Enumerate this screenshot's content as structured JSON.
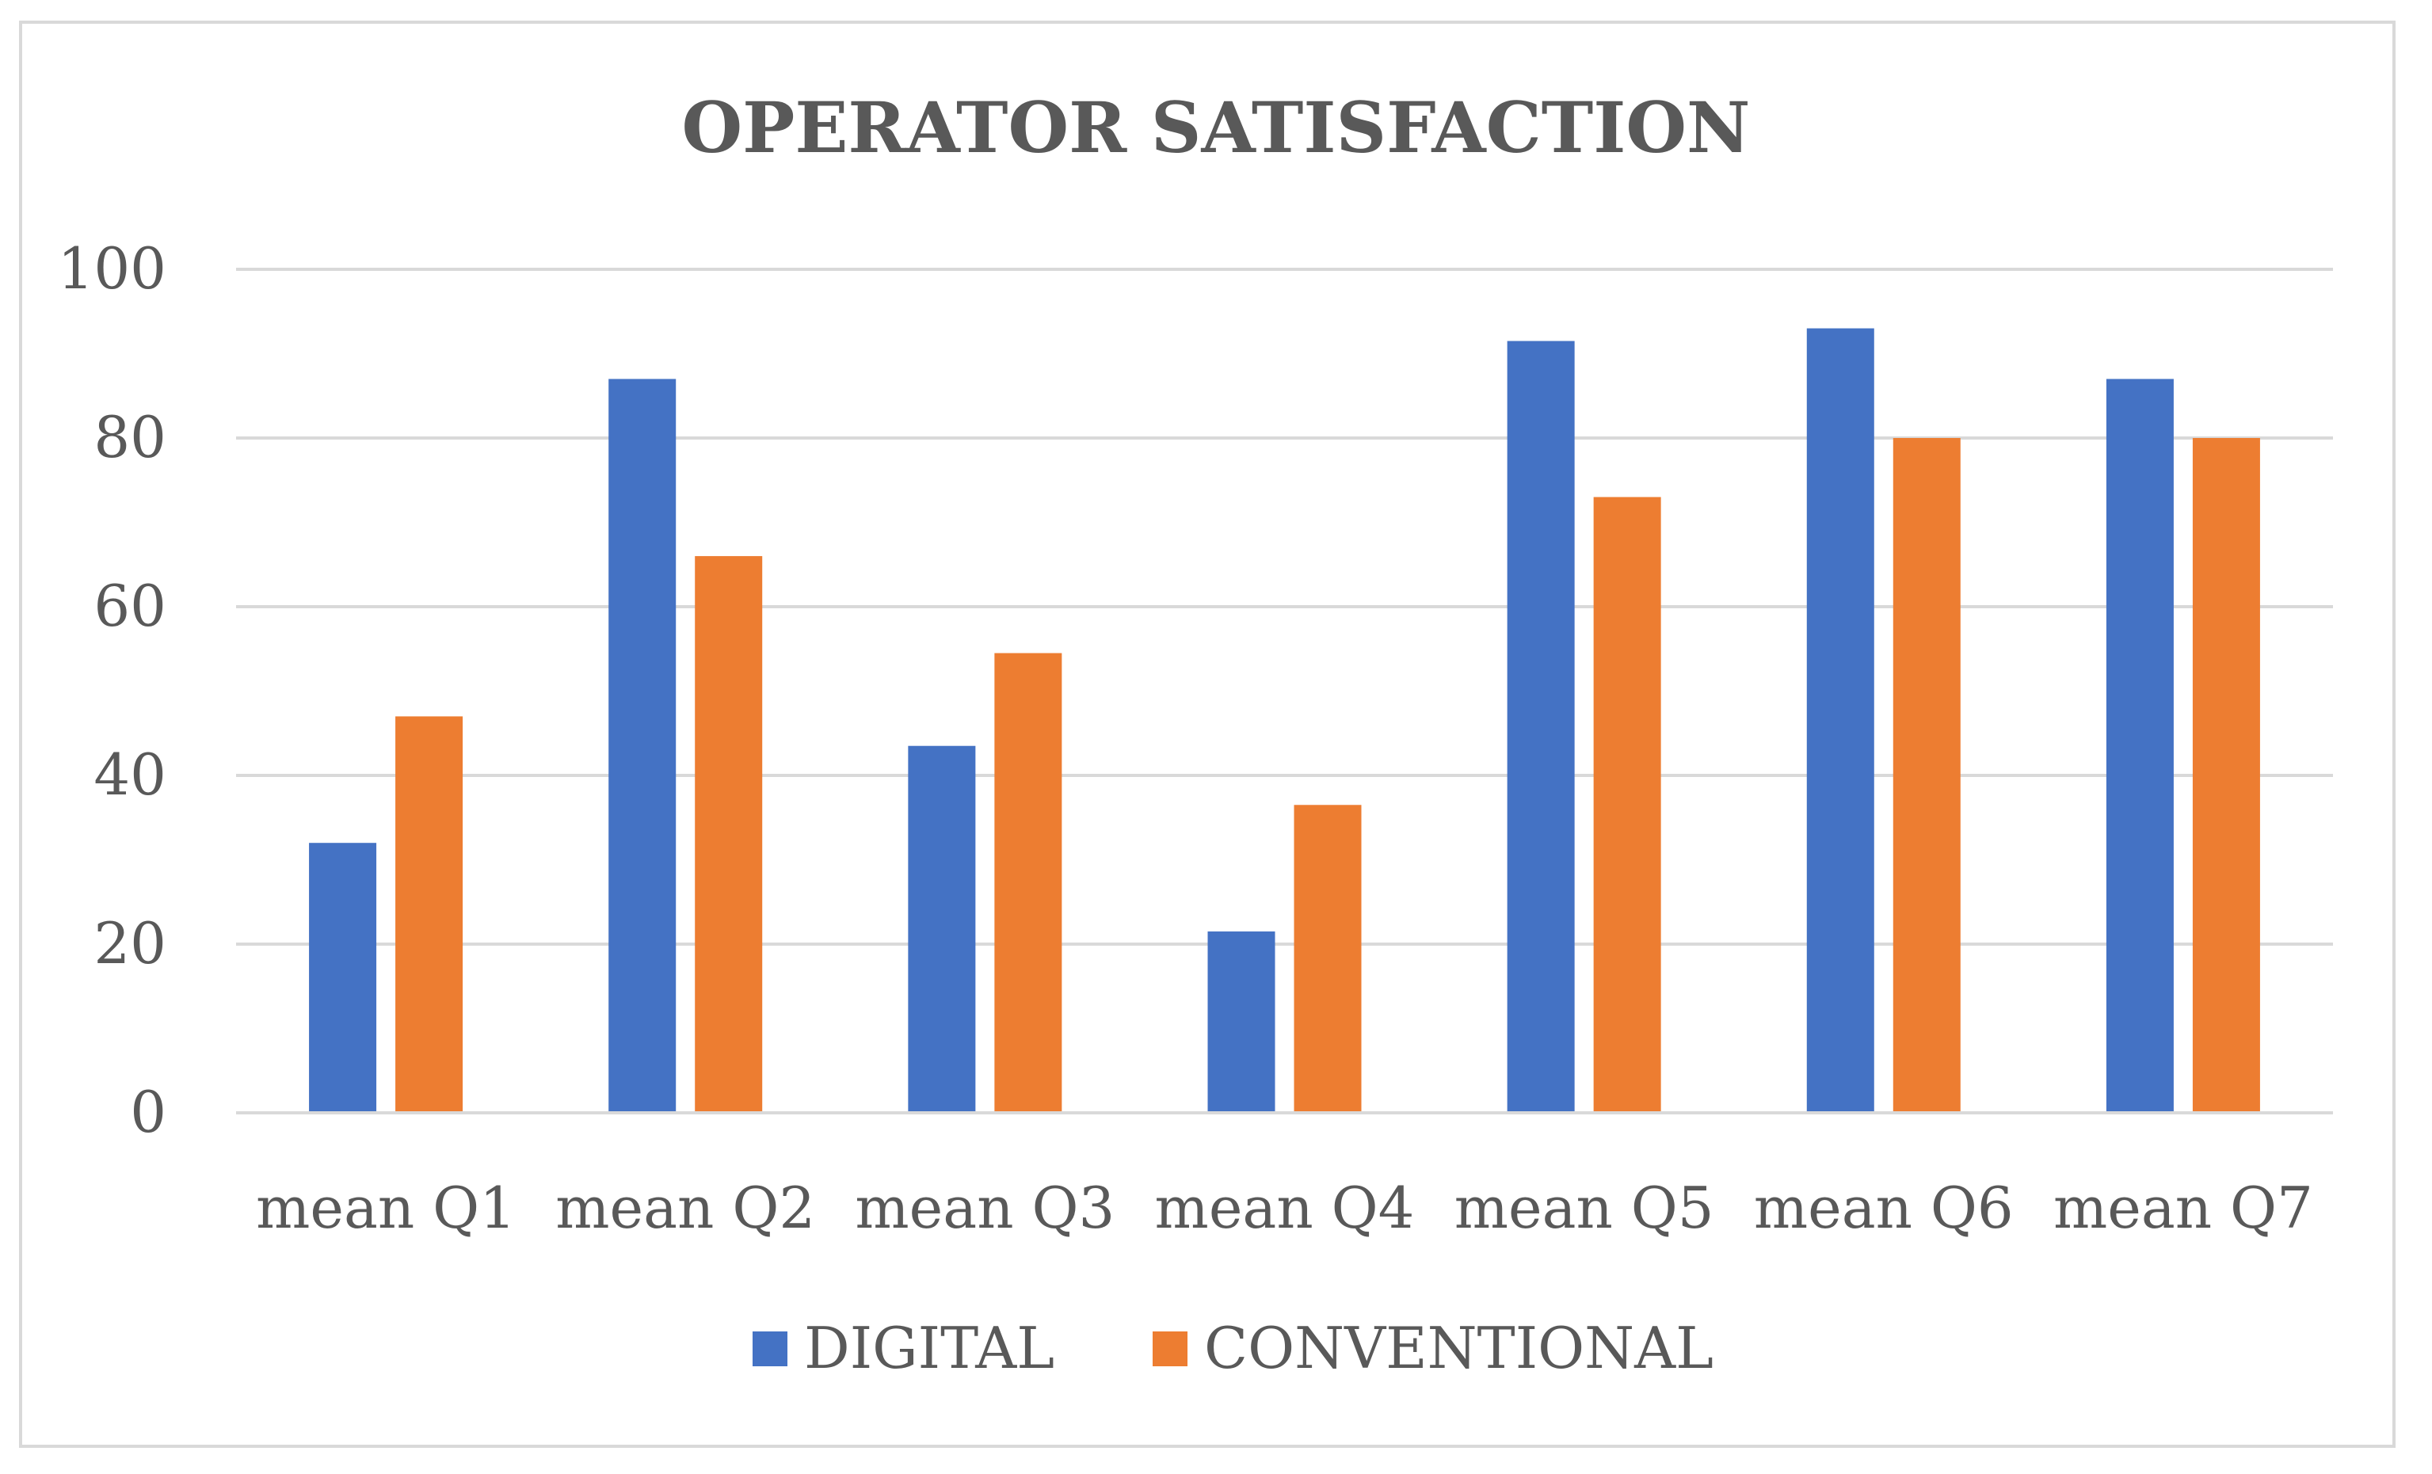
{
  "chart_data": {
    "type": "bar",
    "title": "OPERATOR SATISFACTION",
    "categories": [
      "mean Q1",
      "mean Q2",
      "mean Q3",
      "mean Q4",
      "mean Q5",
      "mean Q6",
      "mean Q7"
    ],
    "series": [
      {
        "name": "DIGITAL",
        "color": "#4472c4",
        "values": [
          32,
          87,
          43.5,
          21.5,
          91.5,
          93,
          87
        ]
      },
      {
        "name": "CONVENTIONAL",
        "color": "#ed7d31",
        "values": [
          47,
          66,
          54.5,
          36.5,
          73,
          80,
          80
        ]
      }
    ],
    "yticks": [
      0,
      20,
      40,
      60,
      80,
      100
    ],
    "ylim": [
      0,
      100
    ],
    "xlabel": "",
    "ylabel": "",
    "grid": true,
    "legend": "bottom-center"
  }
}
